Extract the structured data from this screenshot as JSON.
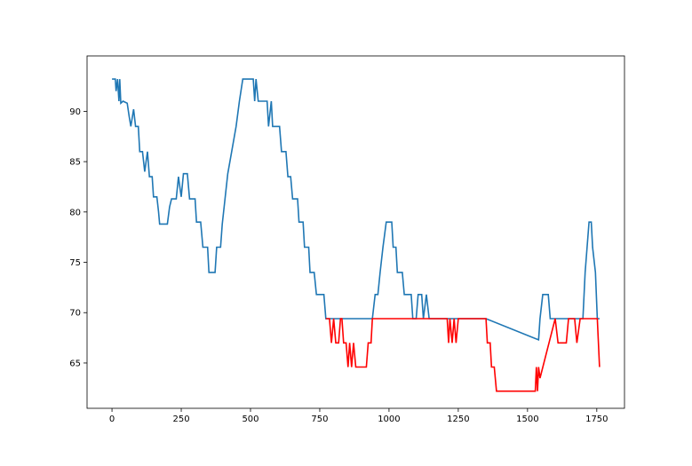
{
  "chart_data": {
    "type": "line",
    "title": "",
    "xlabel": "",
    "ylabel": "",
    "xlim": [
      -90,
      1850
    ],
    "ylim": [
      60.5,
      95.5
    ],
    "x_ticks": [
      0,
      250,
      500,
      750,
      1000,
      1250,
      1500,
      1750
    ],
    "y_ticks": [
      65,
      70,
      75,
      80,
      85,
      90
    ],
    "grid": false,
    "legend": "none",
    "series": [
      {
        "color": "#1f77b4",
        "points": [
          [
            0,
            93.2
          ],
          [
            12,
            93.2
          ],
          [
            15,
            92.0
          ],
          [
            20,
            93.2
          ],
          [
            25,
            91.0
          ],
          [
            28,
            93.2
          ],
          [
            32,
            90.8
          ],
          [
            40,
            91.0
          ],
          [
            55,
            90.8
          ],
          [
            62,
            89.5
          ],
          [
            68,
            88.5
          ],
          [
            78,
            90.2
          ],
          [
            85,
            88.5
          ],
          [
            95,
            88.5
          ],
          [
            100,
            86.0
          ],
          [
            110,
            86.0
          ],
          [
            118,
            84.0
          ],
          [
            128,
            86.0
          ],
          [
            135,
            83.5
          ],
          [
            145,
            83.5
          ],
          [
            150,
            81.5
          ],
          [
            162,
            81.5
          ],
          [
            168,
            80.0
          ],
          [
            172,
            78.8
          ],
          [
            200,
            78.8
          ],
          [
            208,
            80.5
          ],
          [
            215,
            81.3
          ],
          [
            232,
            81.3
          ],
          [
            240,
            83.5
          ],
          [
            250,
            81.5
          ],
          [
            258,
            83.8
          ],
          [
            272,
            83.8
          ],
          [
            280,
            81.3
          ],
          [
            300,
            81.3
          ],
          [
            305,
            79.0
          ],
          [
            320,
            79.0
          ],
          [
            328,
            76.5
          ],
          [
            345,
            76.5
          ],
          [
            350,
            74.0
          ],
          [
            372,
            74.0
          ],
          [
            378,
            76.5
          ],
          [
            392,
            76.5
          ],
          [
            398,
            78.8
          ],
          [
            408,
            81.3
          ],
          [
            418,
            83.8
          ],
          [
            432,
            86.0
          ],
          [
            448,
            88.5
          ],
          [
            460,
            91.0
          ],
          [
            472,
            93.2
          ],
          [
            510,
            93.2
          ],
          [
            515,
            91.0
          ],
          [
            520,
            93.2
          ],
          [
            528,
            91.0
          ],
          [
            560,
            91.0
          ],
          [
            565,
            88.5
          ],
          [
            575,
            91.0
          ],
          [
            580,
            88.5
          ],
          [
            605,
            88.5
          ],
          [
            612,
            86.0
          ],
          [
            628,
            86.0
          ],
          [
            635,
            83.5
          ],
          [
            645,
            83.5
          ],
          [
            652,
            81.3
          ],
          [
            670,
            81.3
          ],
          [
            675,
            79.0
          ],
          [
            690,
            79.0
          ],
          [
            695,
            76.5
          ],
          [
            710,
            76.5
          ],
          [
            715,
            74.0
          ],
          [
            730,
            74.0
          ],
          [
            738,
            71.8
          ],
          [
            765,
            71.8
          ],
          [
            772,
            69.4
          ],
          [
            940,
            69.4
          ],
          [
            950,
            71.8
          ],
          [
            960,
            71.8
          ],
          [
            968,
            74.0
          ],
          [
            978,
            76.5
          ],
          [
            990,
            79.0
          ],
          [
            1010,
            79.0
          ],
          [
            1015,
            76.5
          ],
          [
            1025,
            76.5
          ],
          [
            1030,
            74.0
          ],
          [
            1048,
            74.0
          ],
          [
            1055,
            71.8
          ],
          [
            1080,
            71.8
          ],
          [
            1086,
            69.4
          ],
          [
            1098,
            69.4
          ],
          [
            1105,
            71.8
          ],
          [
            1118,
            71.8
          ],
          [
            1124,
            69.4
          ],
          [
            1135,
            71.8
          ],
          [
            1145,
            69.4
          ],
          [
            1350,
            69.4
          ],
          [
            1540,
            67.3
          ],
          [
            1545,
            69.4
          ],
          [
            1555,
            71.8
          ],
          [
            1575,
            71.8
          ],
          [
            1582,
            69.4
          ],
          [
            1700,
            69.4
          ],
          [
            1708,
            74.0
          ],
          [
            1715,
            76.5
          ],
          [
            1722,
            79.0
          ],
          [
            1730,
            79.0
          ],
          [
            1735,
            76.5
          ],
          [
            1745,
            74.0
          ],
          [
            1752,
            69.4
          ],
          [
            1760,
            69.4
          ]
        ]
      },
      {
        "color": "#ff0000",
        "points": [
          [
            772,
            69.4
          ],
          [
            785,
            69.4
          ],
          [
            792,
            67.0
          ],
          [
            800,
            69.4
          ],
          [
            808,
            67.0
          ],
          [
            818,
            67.0
          ],
          [
            825,
            69.4
          ],
          [
            830,
            69.4
          ],
          [
            836,
            67.0
          ],
          [
            845,
            67.0
          ],
          [
            852,
            64.6
          ],
          [
            858,
            67.0
          ],
          [
            865,
            64.6
          ],
          [
            872,
            67.0
          ],
          [
            880,
            64.6
          ],
          [
            918,
            64.6
          ],
          [
            925,
            67.0
          ],
          [
            935,
            67.0
          ],
          [
            940,
            69.4
          ],
          [
            1210,
            69.4
          ],
          [
            1215,
            67.0
          ],
          [
            1220,
            69.4
          ],
          [
            1228,
            67.0
          ],
          [
            1235,
            69.4
          ],
          [
            1242,
            67.0
          ],
          [
            1250,
            69.4
          ],
          [
            1350,
            69.4
          ],
          [
            1355,
            67.0
          ],
          [
            1365,
            67.0
          ],
          [
            1370,
            64.6
          ],
          [
            1380,
            64.6
          ],
          [
            1388,
            62.2
          ],
          [
            1528,
            62.2
          ],
          [
            1532,
            64.6
          ],
          [
            1536,
            62.2
          ],
          [
            1540,
            64.6
          ],
          [
            1545,
            63.5
          ],
          [
            1600,
            69.4
          ],
          [
            1610,
            67.0
          ],
          [
            1640,
            67.0
          ],
          [
            1648,
            69.4
          ],
          [
            1670,
            69.4
          ],
          [
            1678,
            67.0
          ],
          [
            1690,
            69.4
          ],
          [
            1752,
            69.4
          ],
          [
            1760,
            64.6
          ]
        ]
      }
    ]
  }
}
